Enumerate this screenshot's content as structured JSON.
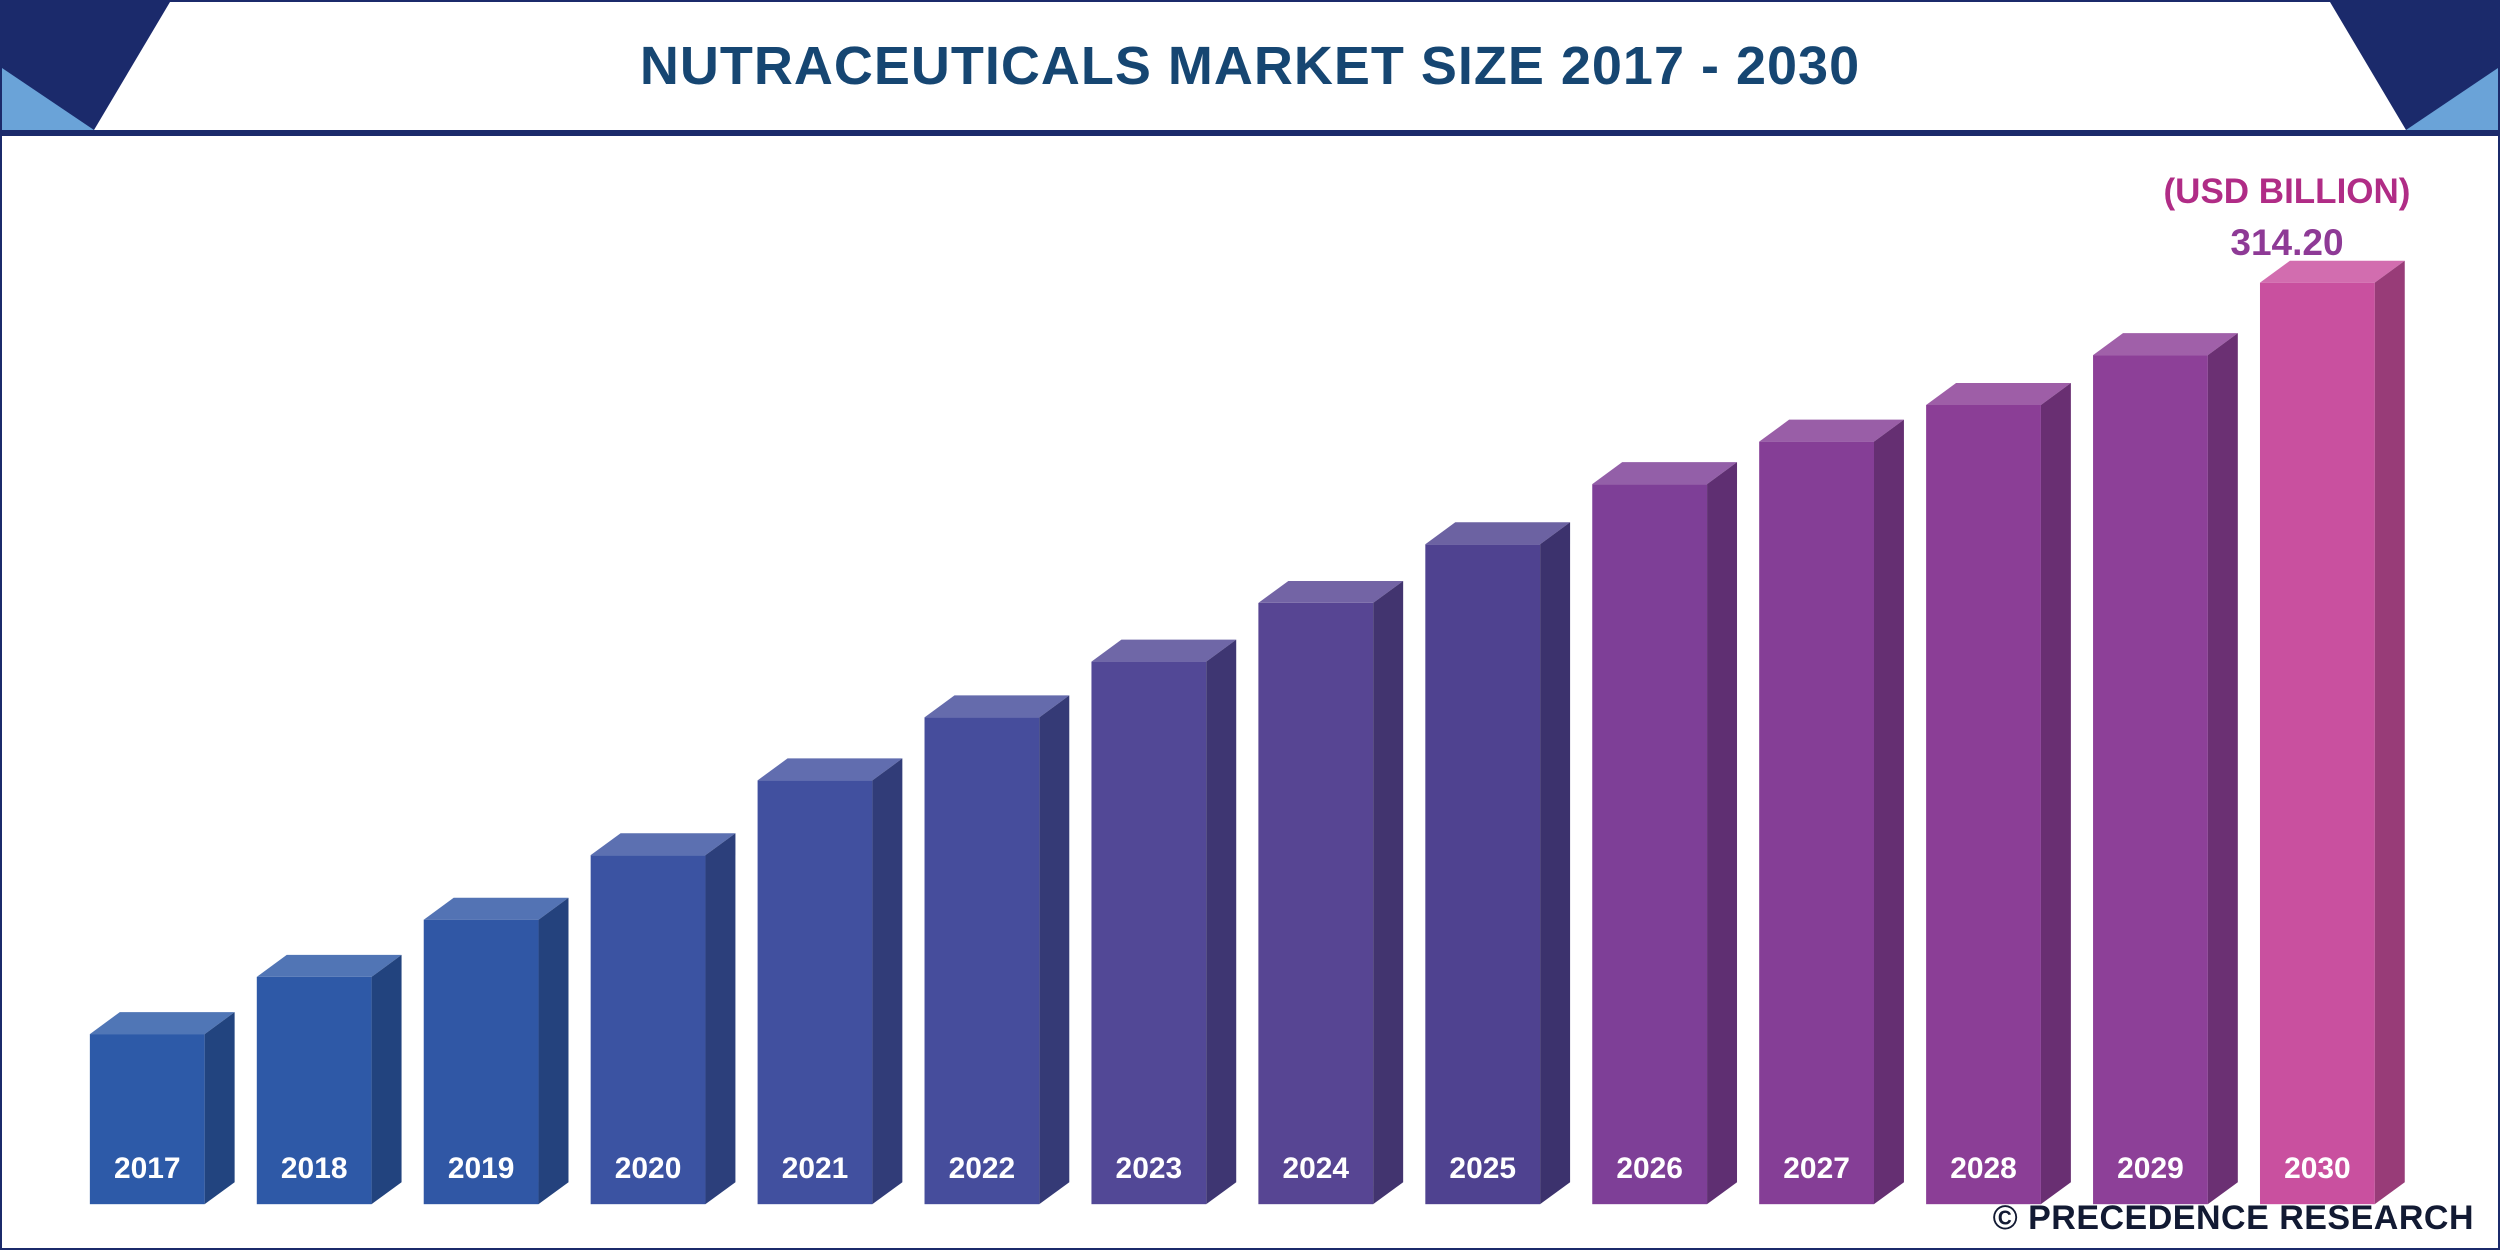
{
  "header": {
    "title": "NUTRACEUTICALS MARKET SIZE 2017 - 2030"
  },
  "chart": {
    "unit_label": "(USD BILLION)",
    "value_label": "314.20",
    "copyright": "© PRECEDENCE RESEARCH"
  },
  "colors": {
    "frame_navy": "#1b2a6b",
    "corner_lightblue": "#6aa3d8",
    "title_navy": "#164672",
    "unit_label_magenta": "#b02c86",
    "value_purple": "#8e3a96",
    "copyright_navy": "#121a33"
  },
  "chart_data": {
    "type": "bar",
    "style": "3d-column",
    "title": "Nutraceuticals Market Size 2017 - 2030",
    "unit": "USD Billion",
    "categories": [
      "2017",
      "2018",
      "2019",
      "2020",
      "2021",
      "2022",
      "2023",
      "2024",
      "2025",
      "2026",
      "2027",
      "2028",
      "2029",
      "2030"
    ],
    "values": [
      58,
      77.5,
      97,
      119,
      144.5,
      166,
      185,
      205,
      225,
      245.5,
      260,
      272.5,
      289.5,
      314.2
    ],
    "values_note": "2017-2029 estimated from bar heights; only the 2030 bar carries an explicit data label of 314.20",
    "labeled_point": {
      "category": "2030",
      "label": "314.20"
    },
    "bar_colors": [
      "#2d5aa8",
      "#2e59a7",
      "#3057a5",
      "#3b53a2",
      "#41509f",
      "#464d9c",
      "#524896",
      "#574593",
      "#4f4290",
      "#7e3f97",
      "#853e96",
      "#8b3e96",
      "#8d4098",
      "#c9509f"
    ],
    "bar_label_color": "#ffffff",
    "ylim": [
      0,
      330
    ],
    "grid": false,
    "legend": false,
    "axes_visible": false
  }
}
